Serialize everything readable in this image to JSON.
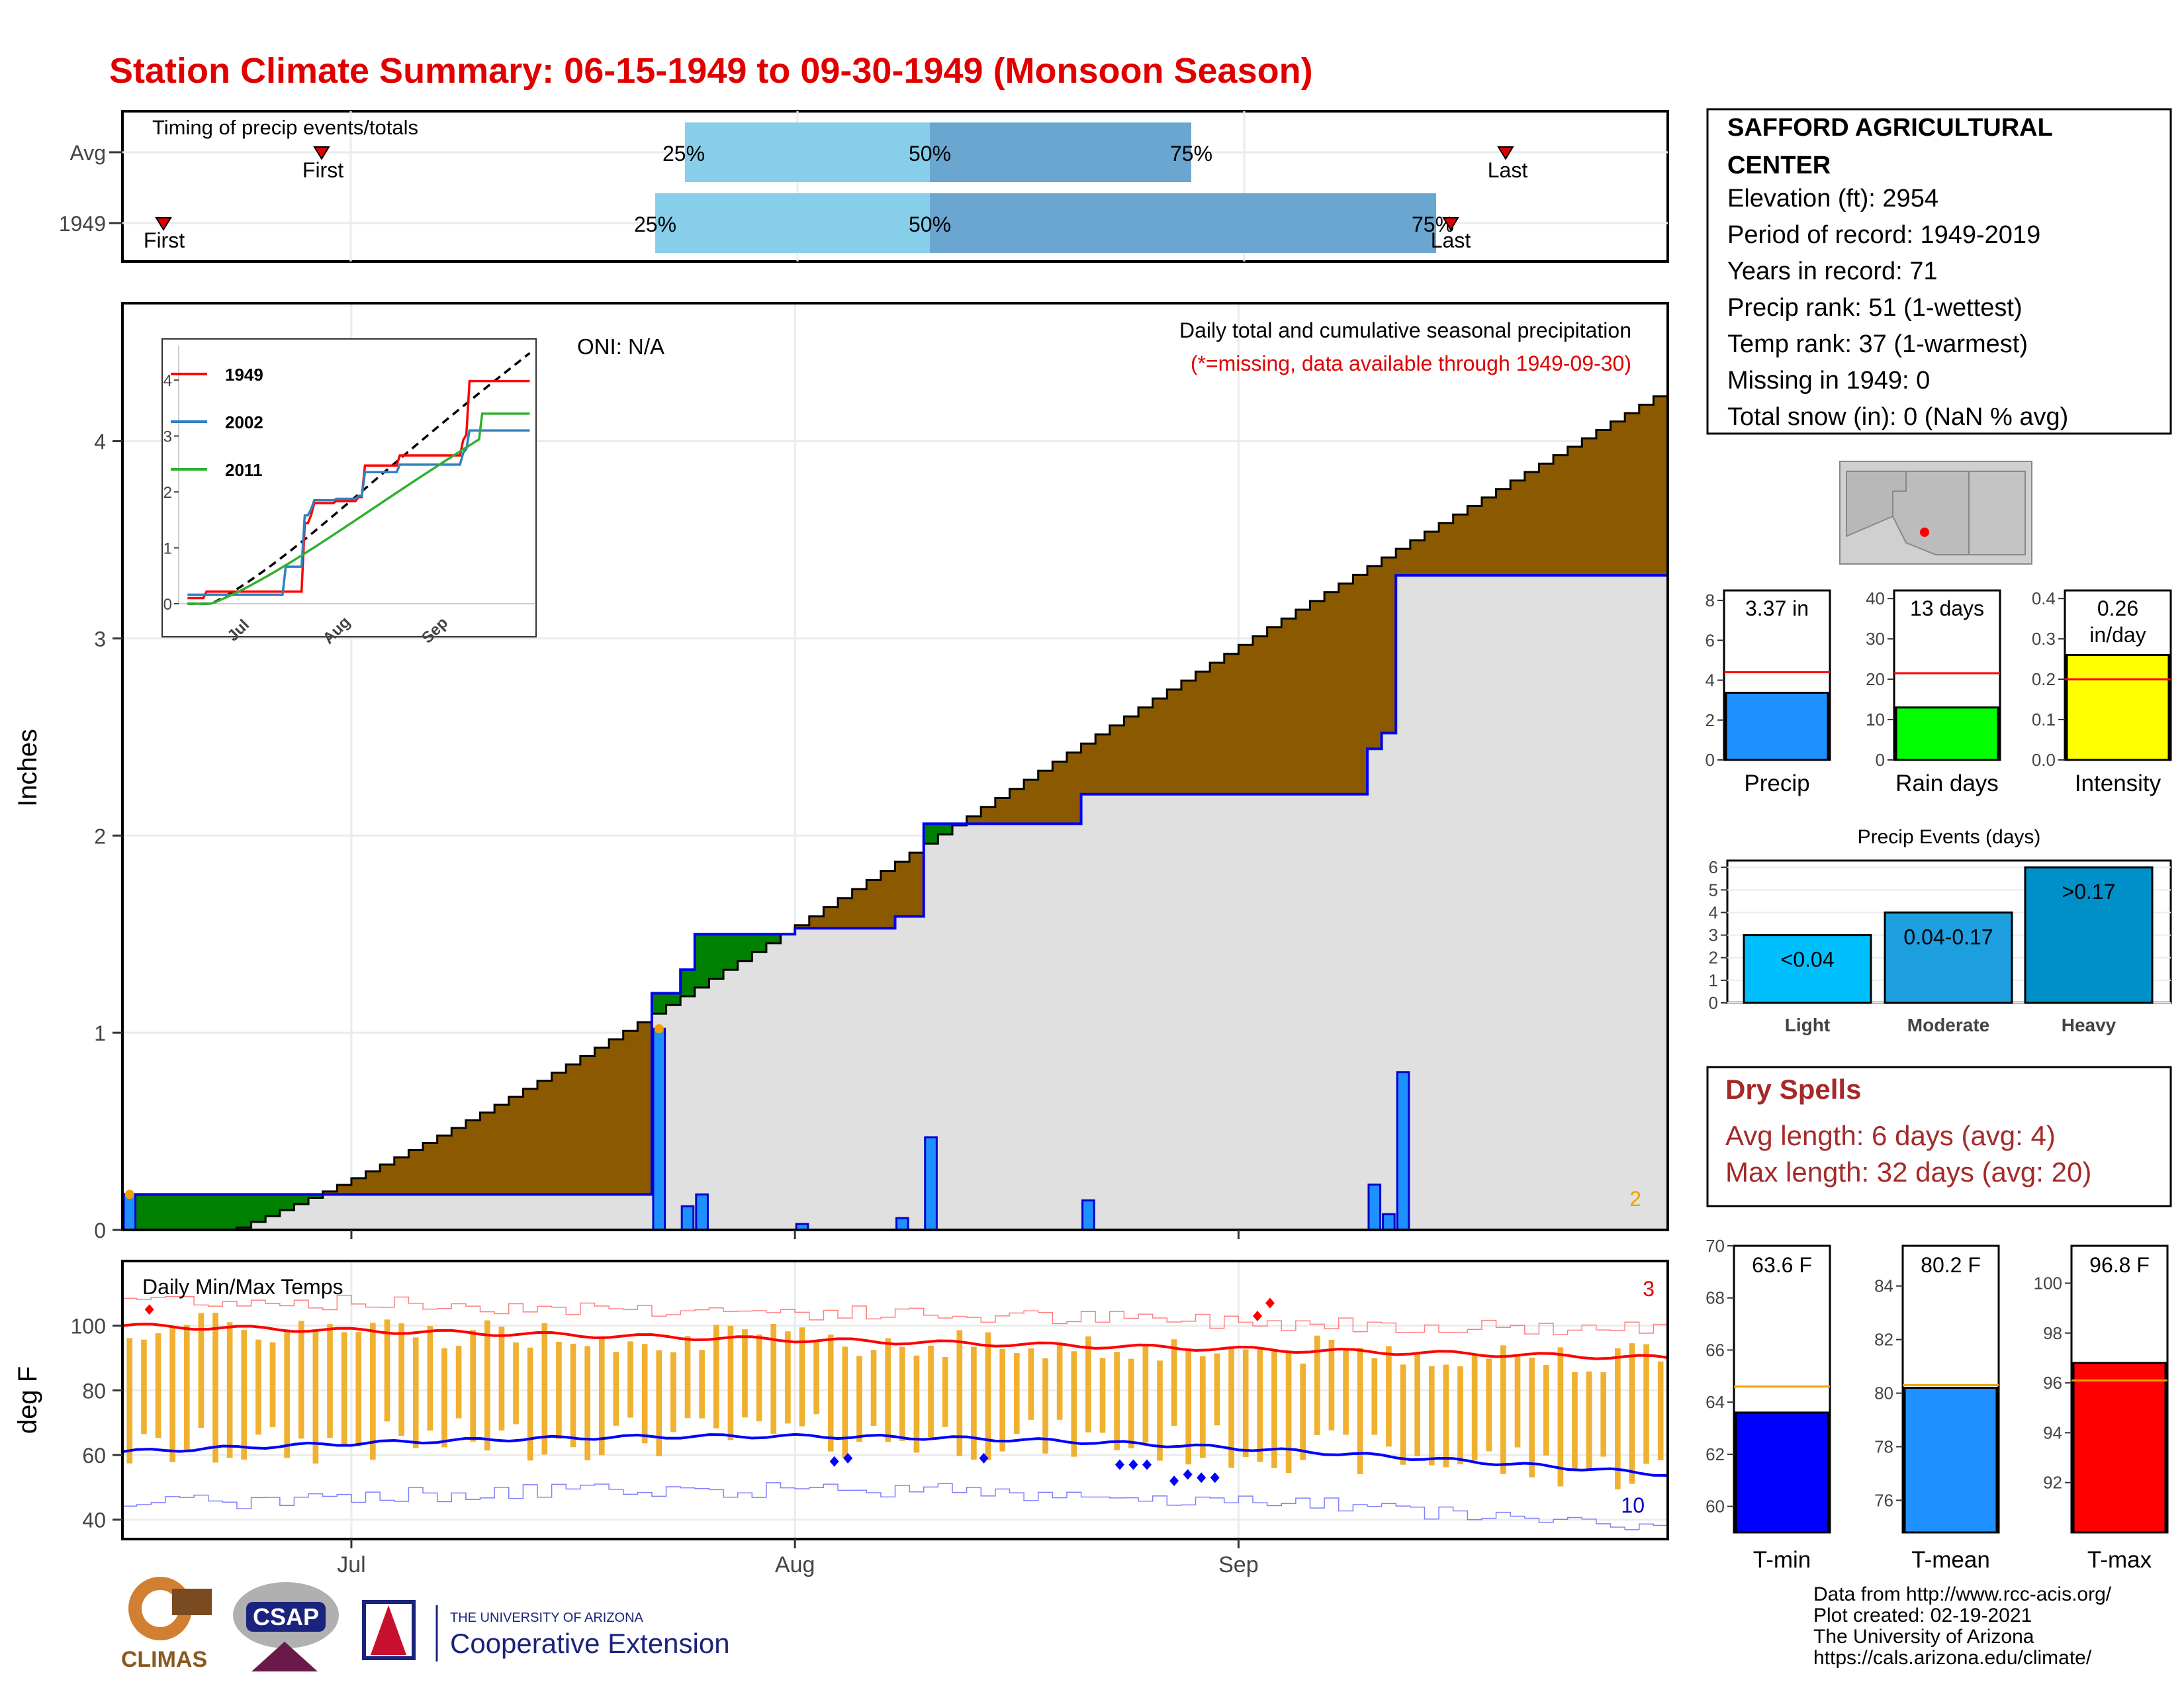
{
  "title": "Station Climate Summary: 06-15-1949 to 09-30-1949 (Monsoon Season)",
  "colors": {
    "title": "#e00000",
    "precip_fill": "#8B5A00",
    "above_fill": "#008000",
    "normal_fill": "#e0e0e0",
    "bar": "#1e90ff",
    "tmax": "#ff0000",
    "tmin": "#0000ff",
    "range": "#f0b030",
    "dry": "#a52a2a"
  },
  "timing": {
    "label": "Timing of precip events/totals",
    "rows": [
      {
        "name": "Avg",
        "first": "First",
        "last": "Last",
        "p25": "25%",
        "p50": "50%",
        "p75": "75%"
      },
      {
        "name": "1949",
        "first": "First",
        "last": "Last",
        "p25": "25%",
        "p50": "50%",
        "p75": "75%"
      }
    ]
  },
  "main": {
    "ylabel": "Inches",
    "yticks": [
      "0",
      "1",
      "2",
      "3",
      "4"
    ],
    "xticks": [
      "Jul",
      "Aug",
      "Sep"
    ],
    "oni": "ONI: N/A",
    "legend_title": "Daily total and cumulative seasonal precipitation",
    "legend_note": "(*=missing, data available through 1949-09-30)",
    "corner_value": "2"
  },
  "inset": {
    "yticks": [
      "0",
      "1",
      "2",
      "3",
      "4"
    ],
    "xticks": [
      "Jul",
      "Aug",
      "Sep"
    ],
    "legend": [
      "1949",
      "2002",
      "2011"
    ]
  },
  "temps": {
    "label": "Daily Min/Max Temps",
    "ylabel": "deg F",
    "yticks": [
      "40",
      "60",
      "80",
      "100"
    ],
    "xticks": [
      "Jul",
      "Aug",
      "Sep"
    ],
    "max_count": "3",
    "min_count": "10"
  },
  "station": {
    "name_line1": "SAFFORD AGRICULTURAL",
    "name_line2": "CENTER",
    "elevation": "Elevation (ft): 2954",
    "period": "Period of record: 1949-2019",
    "years": "Years in record: 71",
    "precip_rank": "Precip rank: 51 (1-wettest)",
    "temp_rank": "Temp rank: 37 (1-warmest)",
    "missing": "Missing in 1949: 0",
    "snow": "Total snow (in): 0 (NaN % avg)"
  },
  "mini_bars": [
    {
      "label": "Precip",
      "value_text": "3.37 in",
      "value": 3.37,
      "avg": 4.4,
      "ymax": 8.5,
      "ticks": [
        "0",
        "2",
        "4",
        "6",
        "8"
      ],
      "color": "#1e90ff"
    },
    {
      "label": "Rain days",
      "value_text": "13 days",
      "value": 13,
      "avg": 21.5,
      "ymax": 42,
      "ticks": [
        "0",
        "10",
        "20",
        "30",
        "40"
      ],
      "color": "#00ff00"
    },
    {
      "label": "Intensity",
      "value_text": "0.26",
      "value_text2": "in/day",
      "value": 0.26,
      "avg": 0.2,
      "ymax": 0.42,
      "ticks": [
        "0.0",
        "0.1",
        "0.2",
        "0.3",
        "0.4"
      ],
      "color": "#ffff00"
    }
  ],
  "events": {
    "title": "Precip Events (days)",
    "yticks": [
      "0",
      "1",
      "2",
      "3",
      "4",
      "5",
      "6"
    ],
    "bars": [
      {
        "label": "Light",
        "range": "<0.04",
        "value": 3,
        "color": "#00bfff"
      },
      {
        "label": "Moderate",
        "range": "0.04-0.17",
        "value": 4,
        "color": "#1e9fdf"
      },
      {
        "label": "Heavy",
        "range": ">0.17",
        "value": 6,
        "color": "#0090c8"
      }
    ]
  },
  "dry": {
    "title": "Dry Spells",
    "avg": "Avg length: 6 days (avg: 4)",
    "max": "Max length: 32 days (avg: 20)"
  },
  "temp_bars": [
    {
      "label": "T-min",
      "value_text": "63.6 F",
      "value": 63.6,
      "avg": 64.6,
      "ymin": 59,
      "ymax": 70,
      "ticks": [
        "60",
        "62",
        "64",
        "66",
        "68",
        "70"
      ],
      "color": "#0000ff"
    },
    {
      "label": "T-mean",
      "value_text": "80.2 F",
      "value": 80.2,
      "avg": 80.3,
      "ymin": 74.8,
      "ymax": 85.5,
      "ticks": [
        "76",
        "78",
        "80",
        "82",
        "84"
      ],
      "color": "#1e90ff"
    },
    {
      "label": "T-max",
      "value_text": "96.8 F",
      "value": 96.8,
      "avg": 96.1,
      "ymin": 90,
      "ymax": 101.5,
      "ticks": [
        "92",
        "94",
        "96",
        "98",
        "100"
      ],
      "color": "#ff0000"
    }
  ],
  "credits": {
    "line1": "Data from http://www.rcc-acis.org/",
    "line2": "Plot created: 02-19-2021",
    "line3": "The University of Arizona",
    "line4": "https://cals.arizona.edu/climate/",
    "logo1": "CLIMAS",
    "logo2": "CSAP",
    "logo3_line1": "THE UNIVERSITY OF ARIZONA",
    "logo3_line2": "Cooperative Extension"
  },
  "chart_data": {
    "type": "area",
    "start_date": "1949-06-15",
    "end_date": "1949-09-30",
    "ylim": [
      0,
      4.7
    ],
    "daily_precip_events": [
      {
        "day": 0,
        "value": 0.18
      },
      {
        "day": 37,
        "value": 1.02
      },
      {
        "day": 39,
        "value": 0.12
      },
      {
        "day": 40,
        "value": 0.18
      },
      {
        "day": 47,
        "value": 0.03
      },
      {
        "day": 54,
        "value": 0.06
      },
      {
        "day": 56,
        "value": 0.47
      },
      {
        "day": 67,
        "value": 0.15
      },
      {
        "day": 87,
        "value": 0.23
      },
      {
        "day": 88,
        "value": 0.08
      },
      {
        "day": 89,
        "value": 0.8
      }
    ],
    "normal_cumulative_end": 4.27,
    "observed_cumulative_end": 3.37,
    "temps": {
      "ylim": [
        34,
        120
      ],
      "tmax_avg_start": 100,
      "tmax_avg_end": 90,
      "tmin_avg_start": 61,
      "tmin_avg_end": 54,
      "record_high_max": 110,
      "record_low_min": 38
    }
  }
}
